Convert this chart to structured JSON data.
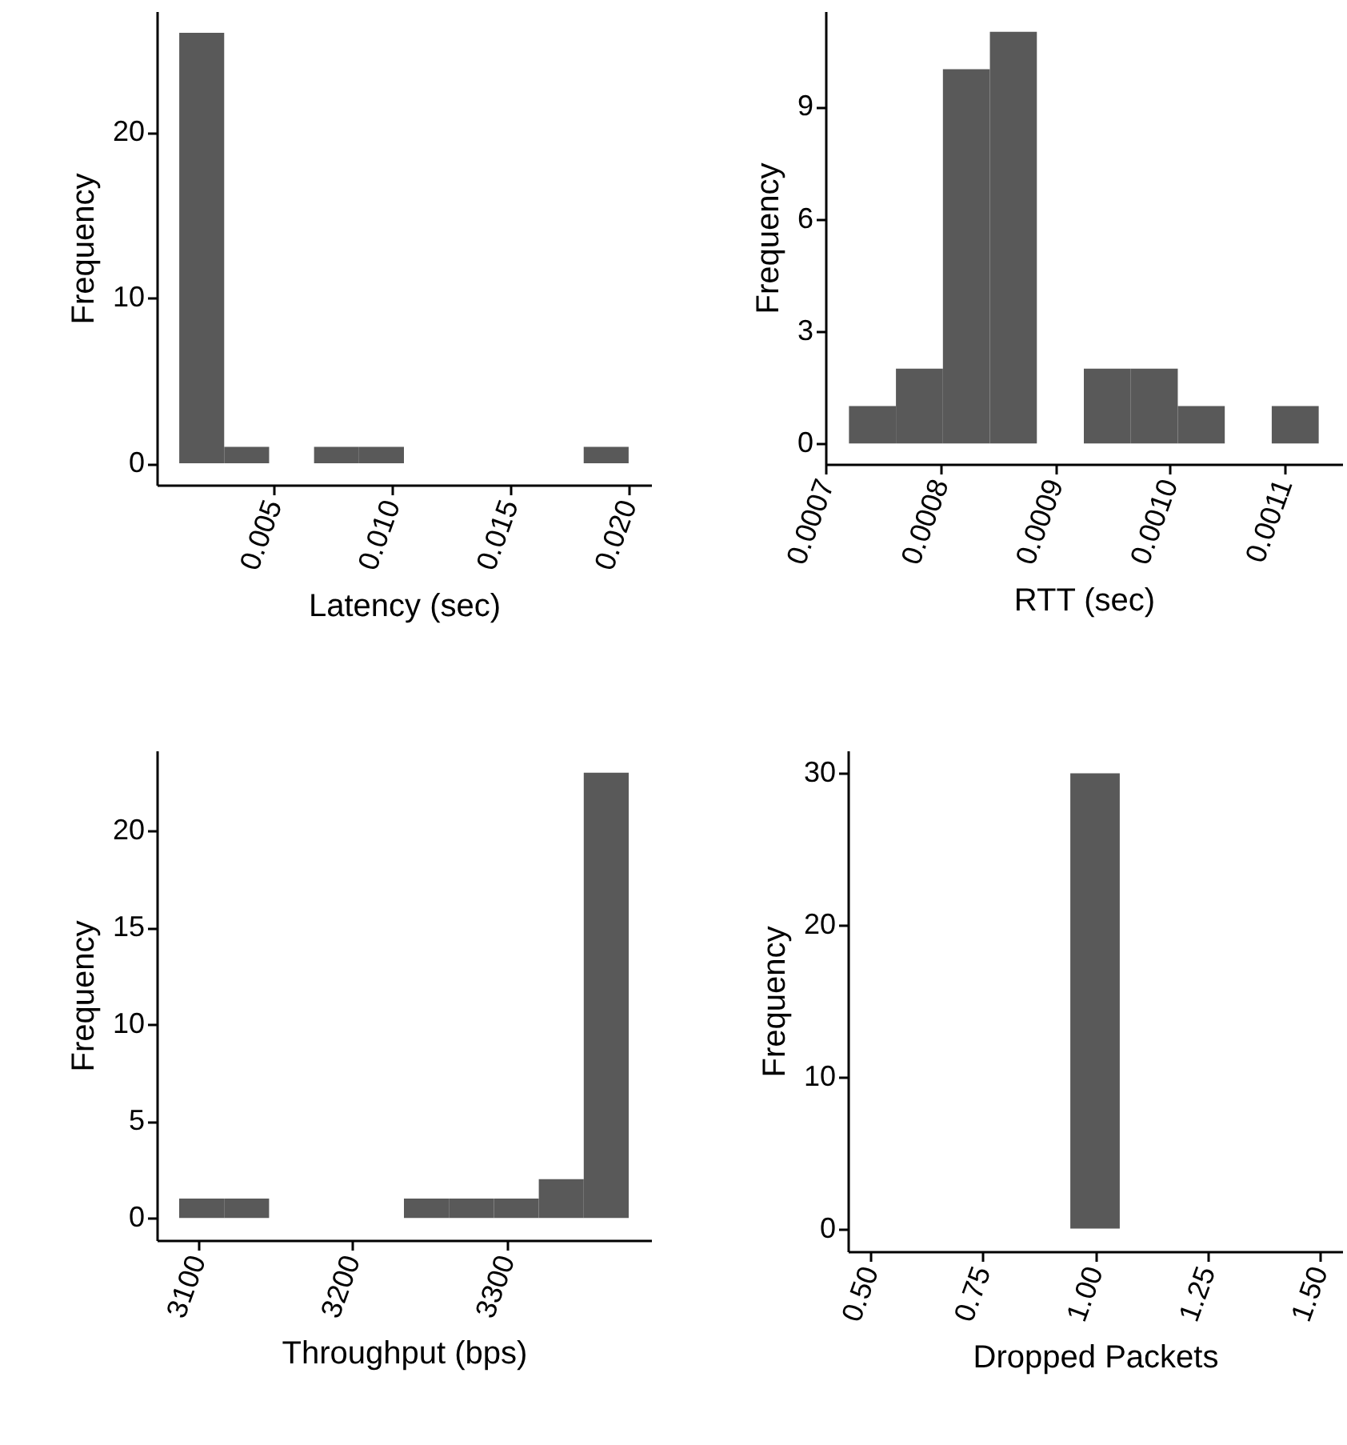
{
  "chart_data": [
    {
      "type": "histogram",
      "xlabel": "Latency (sec)",
      "ylabel": "Frequency",
      "color": "#595959",
      "bins": [
        0.001,
        0.0029,
        0.0048,
        0.0067,
        0.0086,
        0.0105,
        0.0124,
        0.0143,
        0.0162,
        0.0181,
        0.02
      ],
      "values": [
        26,
        1,
        0,
        1,
        1,
        0,
        0,
        0,
        0,
        1
      ],
      "xlim": [
        5e-05,
        0.02095
      ],
      "xticks": [
        0.005,
        {
          "value": 0.01,
          "label": "0.010"
        },
        0.015,
        {
          "value": 0.02,
          "label": "0.020"
        }
      ],
      "ylim": [
        -1.3,
        27.3
      ],
      "yticks": [
        0,
        10,
        20
      ]
    },
    {
      "type": "histogram",
      "xlabel": "RTT (sec)",
      "ylabel": "Frequency",
      "color": "#595959",
      "bins": [
        0.00072,
        0.000761,
        0.000802,
        0.000843,
        0.000884,
        0.000925,
        0.000966,
        0.001007,
        0.001048,
        0.001089,
        0.00113
      ],
      "values": [
        1,
        2,
        10,
        11,
        0,
        2,
        2,
        1,
        0,
        1
      ],
      "xlim": [
        0.0006995,
        0.0011505
      ],
      "xticks": [
        0.0007,
        0.0008,
        0.0009,
        {
          "value": 0.001,
          "label": "0.0010"
        },
        0.0011
      ],
      "ylim": [
        -0.55,
        11.55
      ],
      "yticks": [
        0,
        3,
        6,
        9
      ]
    },
    {
      "type": "histogram",
      "xlabel": "Throughput (bps)",
      "ylabel": "Frequency",
      "color": "#595959",
      "bins": [
        3088,
        3117.1,
        3146.2,
        3175.3,
        3204.4,
        3233.5,
        3262.6,
        3291.7,
        3320.8,
        3349.9,
        3379
      ],
      "values": [
        1,
        1,
        0,
        0,
        0,
        1,
        1,
        1,
        2,
        23
      ],
      "xlim": [
        3073.5,
        3393.5
      ],
      "xticks": [
        3100,
        3200,
        3300
      ],
      "ylim": [
        -1.15,
        24.15
      ],
      "yticks": [
        0,
        5,
        10,
        15,
        20
      ]
    },
    {
      "type": "histogram",
      "xlabel": "Dropped Packets",
      "ylabel": "Frequency",
      "color": "#595959",
      "bins": [
        0.945,
        1.055
      ],
      "values": [
        30
      ],
      "xlim": [
        0.45,
        1.55
      ],
      "xticks": [
        {
          "value": 0.5,
          "label": "0.50"
        },
        0.75,
        {
          "value": 1,
          "label": "1.00"
        },
        1.25,
        {
          "value": 1.5,
          "label": "1.50"
        }
      ],
      "ylim": [
        -1.5,
        31.5
      ],
      "yticks": [
        0,
        10,
        20,
        30
      ]
    }
  ]
}
